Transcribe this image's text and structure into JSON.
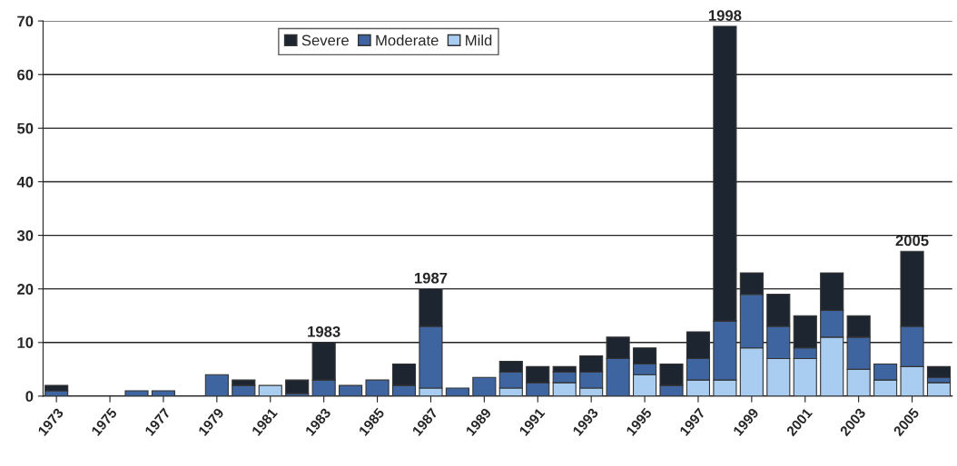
{
  "chart_data": {
    "type": "bar",
    "stacked": true,
    "x": [
      1973,
      1974,
      1975,
      1976,
      1977,
      1978,
      1979,
      1980,
      1981,
      1982,
      1983,
      1984,
      1985,
      1986,
      1987,
      1988,
      1989,
      1990,
      1991,
      1992,
      1993,
      1994,
      1995,
      1996,
      1997,
      1998,
      1999,
      2000,
      2001,
      2002,
      2003,
      2004,
      2005,
      2006
    ],
    "series": [
      {
        "name": "Mild",
        "color": "#a9cdf0",
        "values": [
          0,
          0,
          0,
          0,
          0,
          0,
          0,
          0,
          2,
          0,
          0,
          0,
          0,
          0,
          1.5,
          0,
          0,
          1.5,
          0,
          2.5,
          1.5,
          0,
          4,
          0,
          3,
          3,
          9,
          7,
          7,
          11,
          5,
          3,
          5.5,
          2.5
        ]
      },
      {
        "name": "Moderate",
        "color": "#3f65a0",
        "values": [
          1,
          0,
          0,
          1,
          1,
          0,
          4,
          2,
          0,
          0.5,
          3,
          2,
          3,
          2,
          11.5,
          1.5,
          3.5,
          3,
          2.5,
          2,
          3,
          7,
          2,
          2,
          4,
          11,
          10,
          6,
          2,
          5,
          6,
          3,
          7.5,
          1
        ]
      },
      {
        "name": "Severe",
        "color": "#1c2530",
        "values": [
          1,
          0,
          0,
          0,
          0,
          0,
          0,
          1,
          0,
          2.5,
          7,
          0,
          0,
          4,
          7,
          0,
          0,
          2,
          3,
          1,
          3,
          4,
          3,
          4,
          5,
          55,
          4,
          6,
          6,
          7,
          4,
          0,
          14,
          2
        ]
      }
    ],
    "xlim": [
      1972.5,
      2006.5
    ],
    "xticks": [
      1973,
      1975,
      1977,
      1979,
      1981,
      1983,
      1985,
      1987,
      1989,
      1991,
      1993,
      1995,
      1997,
      1999,
      2001,
      2003,
      2005
    ],
    "ylim": [
      0,
      70
    ],
    "yticks": [
      0,
      10,
      20,
      30,
      40,
      50,
      60,
      70
    ],
    "grid": "y",
    "legend": "top",
    "annotations": [
      {
        "text": "1983",
        "x": 1983,
        "y": 10
      },
      {
        "text": "1987",
        "x": 1987,
        "y": 20
      },
      {
        "text": "1998",
        "x": 1998,
        "y": 69
      },
      {
        "text": "2005",
        "x": 2005,
        "y": 27
      }
    ]
  }
}
